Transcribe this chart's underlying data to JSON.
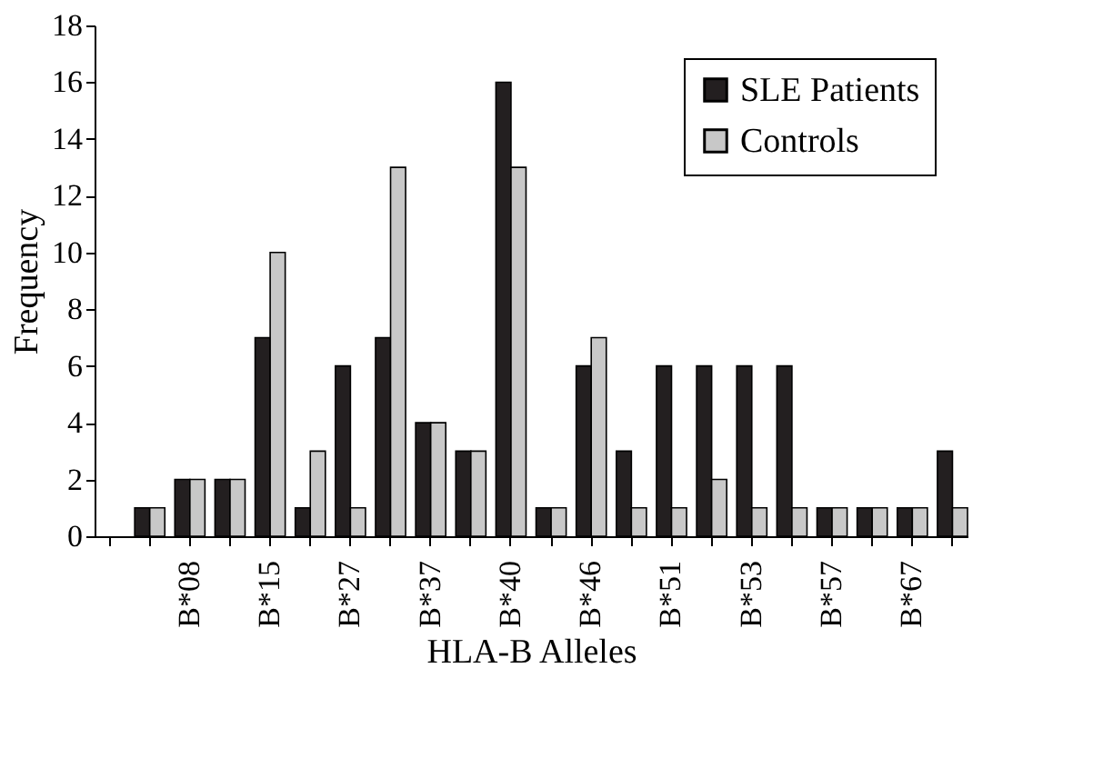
{
  "chart_data": {
    "type": "bar",
    "xlabel": "HLA-B Alleles",
    "ylabel": "Frequency",
    "categories": [
      null,
      null,
      "B*08",
      null,
      "B*15",
      null,
      "B*27",
      null,
      "B*37",
      null,
      "B*40",
      null,
      "B*46",
      null,
      "B*51",
      null,
      "B*53",
      null,
      "B*57",
      null,
      "B*67",
      null
    ],
    "series": [
      {
        "name": "SLE Patients",
        "color": "#231f20",
        "values": [
          null,
          1,
          2,
          2,
          7,
          1,
          6,
          7,
          4,
          3,
          16,
          1,
          6,
          3,
          6,
          6,
          6,
          6,
          1,
          1,
          1,
          3
        ]
      },
      {
        "name": "Controls",
        "color": "#c8c8c8",
        "values": [
          null,
          1,
          2,
          2,
          10,
          3,
          1,
          13,
          4,
          3,
          13,
          1,
          7,
          1,
          1,
          2,
          1,
          1,
          1,
          1,
          1,
          1
        ]
      }
    ],
    "ylim": [
      0,
      18
    ],
    "yticks": [
      0,
      2,
      4,
      6,
      8,
      10,
      12,
      14,
      16,
      18
    ],
    "grid": false,
    "legend": "top right"
  }
}
